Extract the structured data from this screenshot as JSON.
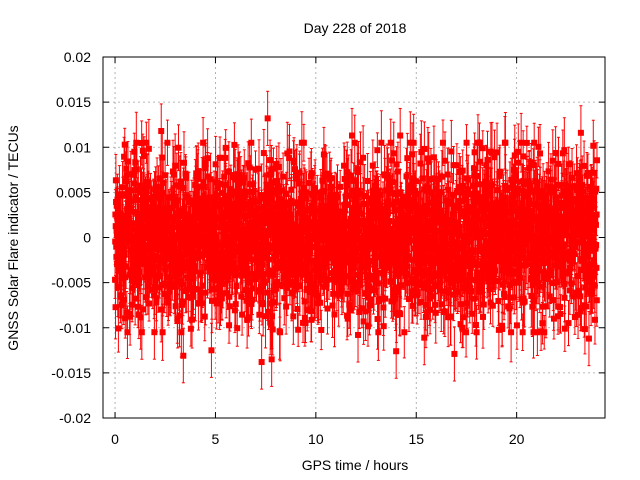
{
  "chart_data": {
    "type": "scatter",
    "title": "Day 228 of 2018",
    "xlabel": "GPS time / hours",
    "ylabel": "GNSS Solar Flare indicator / TECUs",
    "xlim": [
      -0.6,
      24.4
    ],
    "ylim": [
      -0.02,
      0.02
    ],
    "x_ticks": [
      0,
      5,
      10,
      15,
      20
    ],
    "x_tick_labels": [
      "0",
      "5",
      "10",
      "15",
      "20"
    ],
    "y_ticks": [
      0.02,
      0.015,
      0.01,
      0.005,
      0,
      -0.005,
      -0.01,
      -0.015,
      -0.02
    ],
    "y_tick_labels": [
      "0.02",
      "0.015",
      "0.01",
      "0.005",
      "0",
      "-0.005",
      "-0.01",
      "-0.015",
      "-0.02"
    ],
    "grid": true,
    "color": "#ff0000",
    "series": [
      {
        "name": "GNSS Solar Flare indicator",
        "x_start": 0,
        "x_end": 24,
        "n_points": 2880,
        "mean": 0,
        "std": 0.0042,
        "typical_error": 0.003,
        "highlighted_points": [
          {
            "x": 7.6,
            "y": 0.0132
          },
          {
            "x": 23.2,
            "y": 0.0116
          },
          {
            "x": 2.3,
            "y": 0.0118
          },
          {
            "x": 14.2,
            "y": 0.0113
          },
          {
            "x": 11.8,
            "y": 0.0113
          },
          {
            "x": 10.4,
            "y": 0.0092
          },
          {
            "x": 18.9,
            "y": 0.0089
          },
          {
            "x": 3.4,
            "y": -0.0131
          },
          {
            "x": 7.3,
            "y": -0.0138
          },
          {
            "x": 16.9,
            "y": -0.0129
          },
          {
            "x": 4.8,
            "y": -0.0125
          },
          {
            "x": 14.0,
            "y": -0.0126
          },
          {
            "x": 7.8,
            "y": -0.0135
          },
          {
            "x": 23.6,
            "y": -0.0112
          },
          {
            "x": 12.1,
            "y": -0.0108
          },
          {
            "x": 15.4,
            "y": -0.0111
          }
        ]
      }
    ]
  }
}
